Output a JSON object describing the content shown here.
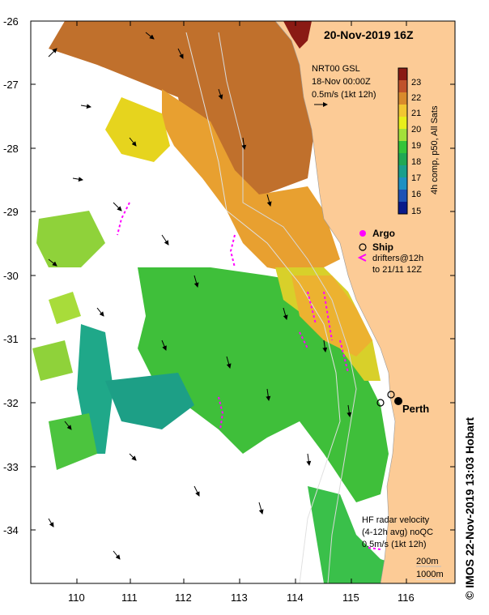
{
  "map": {
    "title": "20-Nov-2019 16Z",
    "gsl_line1": "NRT00 GSL",
    "gsl_line2": "18-Nov 00:00Z",
    "gsl_line3": "0.5m/s (1kt 12h)",
    "x_ticks": [
      "110",
      "111",
      "112",
      "113",
      "114",
      "115",
      "116"
    ],
    "y_ticks": [
      "-26",
      "-27",
      "-28",
      "-29",
      "-30",
      "-31",
      "-32",
      "-33",
      "-34"
    ],
    "colorbar": {
      "ticks": [
        "23",
        "22",
        "21",
        "20",
        "19",
        "18",
        "17",
        "16",
        "15"
      ],
      "label": "4h comp, p50, All Sats",
      "colors": [
        "#8a1a14",
        "#c0522a",
        "#d98a2c",
        "#f2c631",
        "#e8ee1a",
        "#a3e03a",
        "#33c43a",
        "#20a854",
        "#1a9f8c",
        "#1e90c2",
        "#1f52b5",
        "#0a1a8a"
      ]
    },
    "legend": {
      "argo": "Argo",
      "ship": "Ship",
      "drifters_line1": "drifters@12h",
      "drifters_line2": "to 21/11 12Z"
    },
    "city": "Perth",
    "hf": {
      "line1": "HF radar velocity",
      "line2": "(4-12h avg) noQC",
      "line3": "0.5m/s (1kt 12h)"
    },
    "depth1": "200m",
    "depth2": "1000m",
    "copyright": "© IMOS 22-Nov-2019 13:03 Hobart",
    "colors": {
      "land": "#fccb96",
      "warm": "#d9902f",
      "mid": "#a8dc3a",
      "cool": "#2fb845",
      "argo": "#ff00ff",
      "drifter": "#ff00ff"
    }
  }
}
